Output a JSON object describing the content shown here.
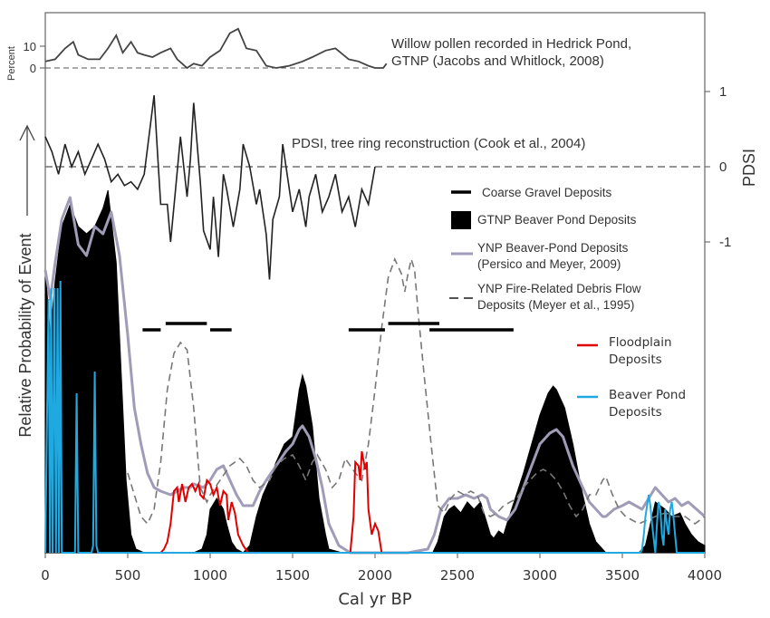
{
  "chart_data": {
    "type": "area",
    "xlabel": "Cal yr BP",
    "xlim": [
      0,
      4000
    ],
    "xticks": [
      "0",
      "500",
      "1000",
      "1500",
      "2000",
      "2500",
      "3000",
      "3500",
      "4000"
    ],
    "ylabel_left": "Relative Probability of Event",
    "ylabel_right": "PDSI",
    "yticks_right": [
      "1",
      "0",
      "-1"
    ],
    "panels": {
      "willow": {
        "label_line1": "Willow pollen recorded in Hedrick Pond,",
        "label_line2": "GTNP (Jacobs and Whitlock, 2008)",
        "axis_label": "Percent",
        "ticks": [
          "10",
          "0"
        ],
        "x": [
          0,
          60,
          120,
          170,
          200,
          260,
          330,
          380,
          430,
          470,
          520,
          560,
          600,
          650,
          700,
          760,
          800,
          860,
          900,
          950,
          1000,
          1060,
          1120,
          1170,
          1220,
          1280,
          1340,
          1400,
          1480,
          1560,
          1620,
          1700,
          1760,
          1840,
          1900,
          1960,
          2000,
          2050,
          2070
        ],
        "values": [
          3,
          4,
          9,
          12,
          6,
          4,
          4,
          9,
          15,
          7,
          12,
          7,
          6,
          5,
          7,
          9,
          4,
          0,
          2,
          1,
          5,
          8,
          16,
          18,
          9,
          8,
          1,
          0,
          1,
          3,
          5,
          8,
          9,
          4,
          3,
          1,
          0,
          0,
          2
        ]
      },
      "pdsi": {
        "label": "PDSI, tree ring reconstruction (Cook et al., 2004)",
        "x": [
          0,
          40,
          80,
          120,
          160,
          200,
          240,
          280,
          320,
          360,
          400,
          440,
          480,
          520,
          560,
          600,
          640,
          660,
          680,
          700,
          740,
          760,
          790,
          820,
          860,
          880,
          900,
          940,
          960,
          1000,
          1020,
          1050,
          1080,
          1100,
          1140,
          1180,
          1200,
          1240,
          1280,
          1300,
          1340,
          1360,
          1380,
          1420,
          1440,
          1480,
          1500,
          1540,
          1580,
          1600,
          1640,
          1680,
          1720,
          1760,
          1800,
          1840,
          1880,
          1920,
          1960,
          2000
        ],
        "values": [
          0.4,
          0.2,
          -0.1,
          0.3,
          0.0,
          0.2,
          -0.1,
          0.1,
          0.3,
          0.1,
          -0.2,
          -0.1,
          -0.25,
          -0.2,
          -0.3,
          -0.1,
          0.6,
          0.95,
          0.2,
          -0.5,
          -0.5,
          -1.0,
          -0.3,
          0.4,
          -0.4,
          0.1,
          0.85,
          -0.2,
          -0.85,
          -1.1,
          -0.4,
          -1.2,
          -0.1,
          -0.3,
          -0.8,
          -0.3,
          0.3,
          0.0,
          -0.5,
          -0.3,
          -0.9,
          -1.5,
          -0.7,
          -0.4,
          0.3,
          -0.3,
          -0.6,
          -0.3,
          -0.8,
          -0.4,
          -0.1,
          -0.6,
          -0.4,
          -0.1,
          -0.6,
          -0.4,
          -0.8,
          -0.3,
          -0.5,
          0.0
        ]
      }
    },
    "legend": [
      {
        "label_line1": "Coarse Gravel Deposits",
        "label_line2": "",
        "color": "#000000",
        "style": "bar"
      },
      {
        "label_line1": "GTNP Beaver Pond Deposits",
        "label_line2": "",
        "color": "#000000",
        "style": "box"
      },
      {
        "label_line1": "YNP Beaver-Pond Deposits",
        "label_line2": "(Persico and Meyer, 2009)",
        "color": "#a09cb8",
        "style": "line"
      },
      {
        "label_line1": "YNP Fire-Related Debris Flow",
        "label_line2": "Deposits  (Meyer et al., 1995)",
        "color": "#777777",
        "style": "dashed"
      },
      {
        "label_line1": "Floodplain",
        "label_line2": "Deposits",
        "color": "#e00000",
        "style": "line"
      },
      {
        "label_line1": "Beaver Pond",
        "label_line2": "Deposits",
        "color": "#20a8e0",
        "style": "line"
      }
    ],
    "series": {
      "gtnp_beaver_pond": {
        "x": [
          0,
          30,
          60,
          100,
          150,
          200,
          250,
          300,
          350,
          380,
          400,
          430,
          460,
          490,
          520,
          550,
          600,
          650,
          700,
          800,
          900,
          950,
          980,
          1000,
          1040,
          1080,
          1100,
          1130,
          1160,
          1200,
          1240,
          1280,
          1320,
          1360,
          1400,
          1450,
          1500,
          1540,
          1560,
          1580,
          1620,
          1660,
          1700,
          1720,
          1800,
          2000,
          2200,
          2350,
          2380,
          2420,
          2450,
          2480,
          2520,
          2560,
          2600,
          2640,
          2680,
          2700,
          2720,
          2750,
          2780,
          2800,
          2850,
          2900,
          2950,
          3000,
          3050,
          3080,
          3100,
          3150,
          3200,
          3250,
          3300,
          3340,
          3400,
          3600,
          3640,
          3680,
          3700,
          3760,
          3800,
          3850,
          3880,
          3920,
          3960,
          4000
        ],
        "values": [
          0.78,
          0.6,
          0.75,
          0.9,
          0.96,
          0.9,
          0.88,
          0.9,
          0.95,
          1.0,
          0.92,
          0.8,
          0.5,
          0.2,
          0.05,
          0.01,
          0,
          0,
          0,
          0,
          0,
          0.01,
          0.05,
          0.12,
          0.15,
          0.12,
          0.08,
          0.03,
          0.01,
          0,
          0.02,
          0.1,
          0.16,
          0.2,
          0.25,
          0.3,
          0.32,
          0.45,
          0.49,
          0.46,
          0.35,
          0.15,
          0.05,
          0.01,
          0,
          0,
          0,
          0,
          0.03,
          0.1,
          0.12,
          0.13,
          0.11,
          0.14,
          0.12,
          0.14,
          0.08,
          0.05,
          0.04,
          0.06,
          0.05,
          0.08,
          0.15,
          0.22,
          0.3,
          0.38,
          0.44,
          0.46,
          0.45,
          0.4,
          0.3,
          0.18,
          0.08,
          0.03,
          0,
          0,
          0.02,
          0.1,
          0.14,
          0.12,
          0.1,
          0.11,
          0.08,
          0.05,
          0.03,
          0.02
        ]
      },
      "ynp_beaver_pond": {
        "x": [
          0,
          30,
          60,
          100,
          150,
          200,
          250,
          300,
          350,
          400,
          450,
          500,
          540,
          580,
          620,
          660,
          700,
          760,
          800,
          840,
          880,
          900,
          960,
          1000,
          1040,
          1080,
          1120,
          1160,
          1200,
          1260,
          1300,
          1340,
          1400,
          1460,
          1500,
          1540,
          1560,
          1600,
          1640,
          1680,
          1720,
          1780,
          1850,
          1950,
          2050,
          2200,
          2320,
          2360,
          2400,
          2450,
          2500,
          2550,
          2600,
          2650,
          2680,
          2700,
          2750,
          2800,
          2850,
          2900,
          2950,
          3000,
          3060,
          3100,
          3140,
          3200,
          3260,
          3300,
          3340,
          3380,
          3400,
          3450,
          3500,
          3540,
          3580,
          3620,
          3660,
          3700,
          3740,
          3780,
          3820,
          3860,
          3900,
          3950,
          4000
        ],
        "values": [
          0.78,
          0.7,
          0.8,
          0.92,
          0.98,
          0.85,
          0.82,
          0.9,
          0.88,
          0.94,
          0.82,
          0.6,
          0.4,
          0.3,
          0.22,
          0.18,
          0.17,
          0.16,
          0.17,
          0.18,
          0.18,
          0.19,
          0.18,
          0.2,
          0.23,
          0.24,
          0.2,
          0.16,
          0.13,
          0.13,
          0.17,
          0.2,
          0.24,
          0.28,
          0.3,
          0.34,
          0.35,
          0.32,
          0.26,
          0.18,
          0.08,
          0.02,
          0,
          0,
          0,
          0,
          0.01,
          0.05,
          0.12,
          0.15,
          0.15,
          0.16,
          0.15,
          0.16,
          0.15,
          0.12,
          0.1,
          0.09,
          0.12,
          0.18,
          0.24,
          0.3,
          0.33,
          0.34,
          0.32,
          0.24,
          0.18,
          0.14,
          0.12,
          0.1,
          0.1,
          0.12,
          0.13,
          0.14,
          0.13,
          0.12,
          0.15,
          0.18,
          0.16,
          0.14,
          0.15,
          0.13,
          0.14,
          0.12,
          0.1
        ]
      },
      "ynp_debris_flow": {
        "x": [
          500,
          540,
          580,
          620,
          660,
          700,
          740,
          780,
          820,
          860,
          900,
          940,
          980,
          1000,
          1060,
          1120,
          1180,
          1220,
          1260,
          1300,
          1360,
          1400,
          1450,
          1500,
          1540,
          1580,
          1620,
          1650,
          1700,
          1740,
          1780,
          1820,
          1880,
          1920,
          1960,
          2000,
          2040,
          2080,
          2120,
          2160,
          2180,
          2200,
          2220,
          2240,
          2260,
          2300,
          2340,
          2380,
          2420,
          2460,
          2500,
          2540,
          2580,
          2620,
          2660,
          2700,
          2740,
          2780,
          2820,
          2860,
          2900,
          2940,
          2980,
          3020,
          3060,
          3100,
          3140,
          3180,
          3220,
          3260,
          3300,
          3340,
          3380,
          3400,
          3440,
          3480,
          3520,
          3560,
          3600,
          3650,
          3700,
          3760,
          3820,
          3880,
          3940,
          4000
        ],
        "values": [
          0.22,
          0.16,
          0.1,
          0.08,
          0.12,
          0.25,
          0.45,
          0.55,
          0.58,
          0.56,
          0.4,
          0.18,
          0.14,
          0.16,
          0.2,
          0.24,
          0.26,
          0.24,
          0.2,
          0.18,
          0.2,
          0.24,
          0.26,
          0.27,
          0.24,
          0.2,
          0.25,
          0.27,
          0.23,
          0.18,
          0.2,
          0.26,
          0.22,
          0.2,
          0.3,
          0.45,
          0.62,
          0.76,
          0.81,
          0.77,
          0.72,
          0.77,
          0.81,
          0.78,
          0.67,
          0.48,
          0.3,
          0.13,
          0.11,
          0.15,
          0.17,
          0.16,
          0.17,
          0.16,
          0.11,
          0.1,
          0.11,
          0.13,
          0.14,
          0.15,
          0.18,
          0.2,
          0.22,
          0.23,
          0.22,
          0.2,
          0.17,
          0.13,
          0.1,
          0.12,
          0.16,
          0.16,
          0.2,
          0.21,
          0.16,
          0.12,
          0.1,
          0.09,
          0.08,
          0.09,
          0.1,
          0.11,
          0.1,
          0.1,
          0.08,
          0.1
        ]
      },
      "floodplain": {
        "x": [
          700,
          720,
          740,
          760,
          780,
          800,
          810,
          830,
          850,
          870,
          890,
          910,
          930,
          940,
          960,
          980,
          1000,
          1020,
          1040,
          1060,
          1080,
          1100,
          1110,
          1130,
          1150,
          1170,
          1200,
          1230,
          1850,
          1870,
          1880,
          1900,
          1910,
          1920,
          1940,
          1950,
          1960,
          1980,
          2000,
          2020,
          2040
        ],
        "values": [
          0,
          0.01,
          0.03,
          0.08,
          0.17,
          0.18,
          0.14,
          0.19,
          0.14,
          0.18,
          0.19,
          0.17,
          0.19,
          0.16,
          0.15,
          0.2,
          0.19,
          0.16,
          0.18,
          0.13,
          0.17,
          0.16,
          0.09,
          0.14,
          0.11,
          0.05,
          0.02,
          0.0,
          0,
          0.1,
          0.25,
          0.24,
          0.2,
          0.28,
          0.23,
          0.25,
          0.12,
          0.05,
          0.08,
          0.06,
          0.0
        ]
      },
      "beaver_pond_blue": {
        "x": [
          0,
          20,
          28,
          35,
          44,
          55,
          65,
          75,
          83,
          92,
          100,
          110,
          120,
          130,
          150,
          160,
          170,
          180,
          190,
          200,
          210,
          230,
          260,
          280,
          290,
          300,
          310,
          320,
          330,
          350,
          400,
          3610,
          3620,
          3630,
          3640,
          3660,
          3670,
          3680,
          3690,
          3700,
          3710,
          3720,
          3730,
          3740,
          3750,
          3760,
          3770,
          3780,
          3790,
          3800,
          3810,
          3820,
          3830,
          3850,
          4000
        ],
        "values": [
          0,
          0.7,
          0.0,
          0.73,
          0.0,
          0.73,
          0.0,
          0.73,
          0.0,
          0.75,
          0.0,
          0.0,
          0.0,
          0.0,
          0.0,
          0.0,
          0.0,
          0.0,
          0.44,
          0.0,
          0.0,
          0.0,
          0.0,
          0.0,
          0.02,
          0.5,
          0.02,
          0.0,
          0.0,
          0.0,
          0.0,
          0.0,
          0.01,
          0.05,
          0.1,
          0.16,
          0.13,
          0.08,
          0.04,
          0.0,
          0.08,
          0.14,
          0.12,
          0.05,
          0.02,
          0.12,
          0.08,
          0.05,
          0.12,
          0.14,
          0.1,
          0.05,
          0.0,
          0.0,
          0.0
        ]
      },
      "coarse_gravel_segments": [
        [
          590,
          700
        ],
        [
          730,
          980
        ],
        [
          1000,
          1130
        ],
        [
          1840,
          2060
        ],
        [
          2080,
          2390
        ],
        [
          2330,
          2840
        ]
      ],
      "coarse_gravel_raised": [
        false,
        true,
        false,
        false,
        true,
        false
      ]
    }
  }
}
